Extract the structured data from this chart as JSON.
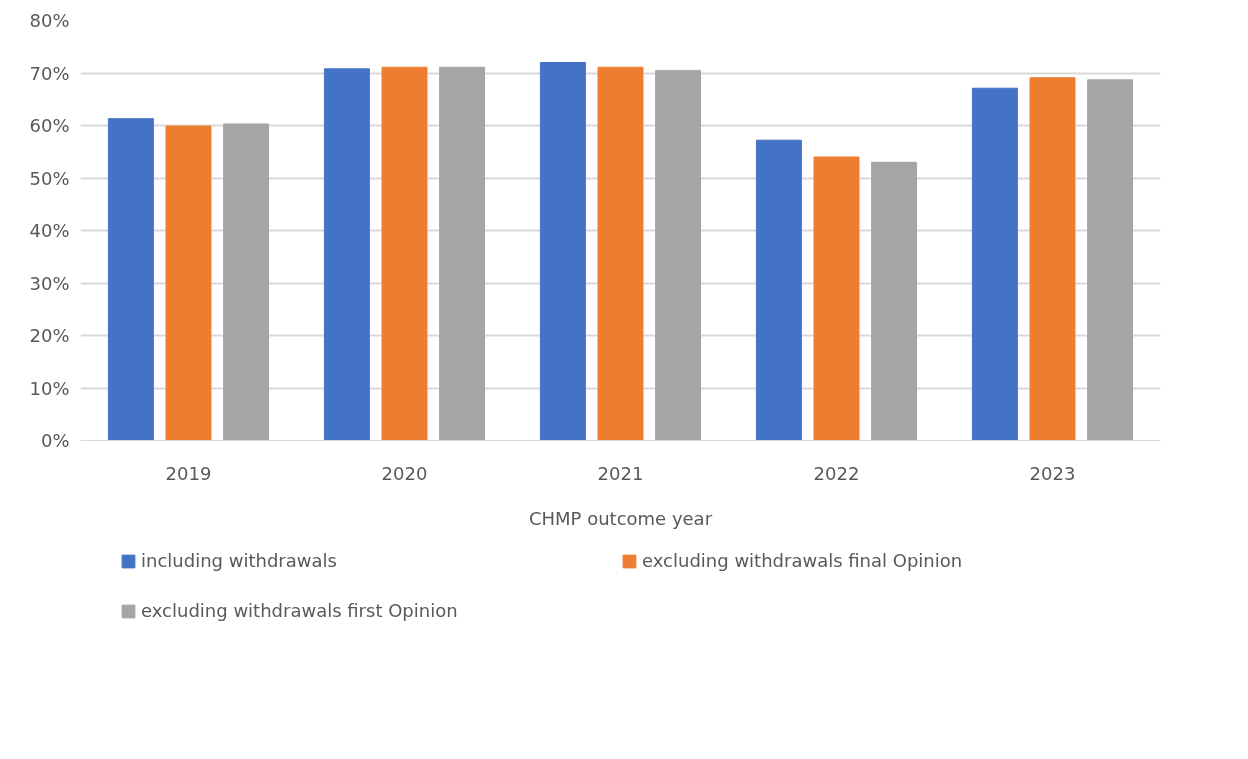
{
  "chart_data": {
    "type": "bar",
    "xlabel": "CHMP outcome year",
    "categories": [
      "2019",
      "2020",
      "2021",
      "2022",
      "2023"
    ],
    "series": [
      {
        "name": "including withdrawals",
        "color": "#4472c4",
        "values": [
          61.3,
          70.8,
          72.0,
          57.2,
          67.1
        ]
      },
      {
        "name": "excluding withdrawals final Opinion",
        "color": "#ed7d31",
        "values": [
          59.9,
          71.1,
          71.1,
          54.0,
          69.1
        ]
      },
      {
        "name": "excluding withdrawals first Opinion",
        "color": "#a5a5a5",
        "values": [
          60.3,
          71.1,
          70.5,
          53.0,
          68.7
        ]
      }
    ],
    "ylim": [
      0,
      80
    ],
    "yticks": [
      {
        "value": 0,
        "label": "0%"
      },
      {
        "value": 10,
        "label": "10%"
      },
      {
        "value": 20,
        "label": "20%"
      },
      {
        "value": 30,
        "label": "30%"
      },
      {
        "value": 40,
        "label": "40%"
      },
      {
        "value": 50,
        "label": "50%"
      },
      {
        "value": 60,
        "label": "60%"
      },
      {
        "value": 70,
        "label": "70%"
      },
      {
        "value": 80,
        "label": "80%"
      }
    ],
    "grid": "y",
    "legend": "bottom"
  }
}
